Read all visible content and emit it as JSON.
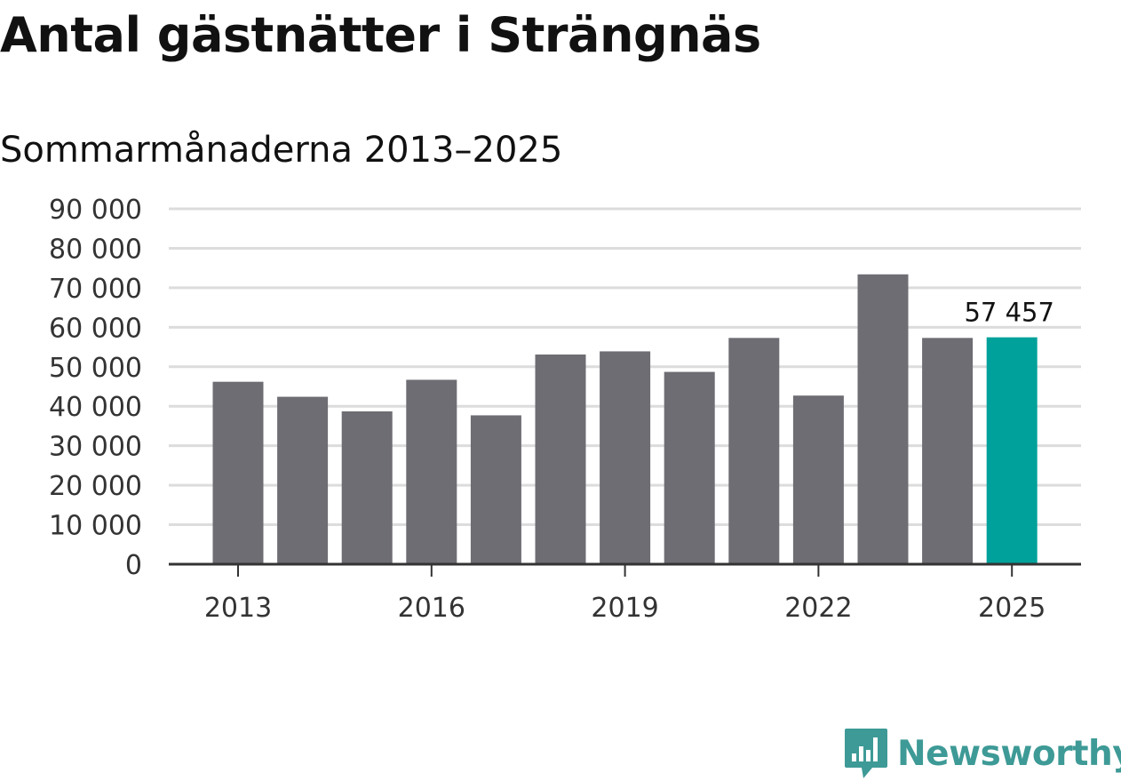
{
  "title": "Antal gästnätter i Strängnäs",
  "subtitle": "Sommarmånaderna 2013–2025",
  "brand": {
    "name": "Newsworthy",
    "color": "#3e9a96",
    "icon": "bar-chart-bubble-icon"
  },
  "colors": {
    "bar": "#6e6d73",
    "highlight": "#00a19a",
    "grid": "#dcdcdc",
    "axis": "#333333"
  },
  "chart_data": {
    "type": "bar",
    "title": "Antal gästnätter i Strängnäs",
    "subtitle": "Sommarmånaderna 2013–2025",
    "xlabel": "",
    "ylabel": "",
    "categories": [
      "2013",
      "2014",
      "2015",
      "2016",
      "2017",
      "2018",
      "2019",
      "2020",
      "2021",
      "2022",
      "2023",
      "2024",
      "2025"
    ],
    "values": [
      46200,
      42400,
      38700,
      46700,
      37700,
      53100,
      53900,
      48700,
      57300,
      42700,
      73400,
      57300,
      57457
    ],
    "xticks": [
      "2013",
      "2016",
      "2019",
      "2022",
      "2025"
    ],
    "yticks": [
      0,
      10000,
      20000,
      30000,
      40000,
      50000,
      60000,
      70000,
      80000,
      90000
    ],
    "ytick_labels": [
      "0",
      "10 000",
      "20 000",
      "30 000",
      "40 000",
      "50 000",
      "60 000",
      "70 000",
      "80 000",
      "90 000"
    ],
    "ylim": [
      0,
      90000
    ],
    "grid": true,
    "highlight_category": "2025",
    "data_labels": [
      {
        "category": "2025",
        "text": "57 457"
      }
    ]
  }
}
